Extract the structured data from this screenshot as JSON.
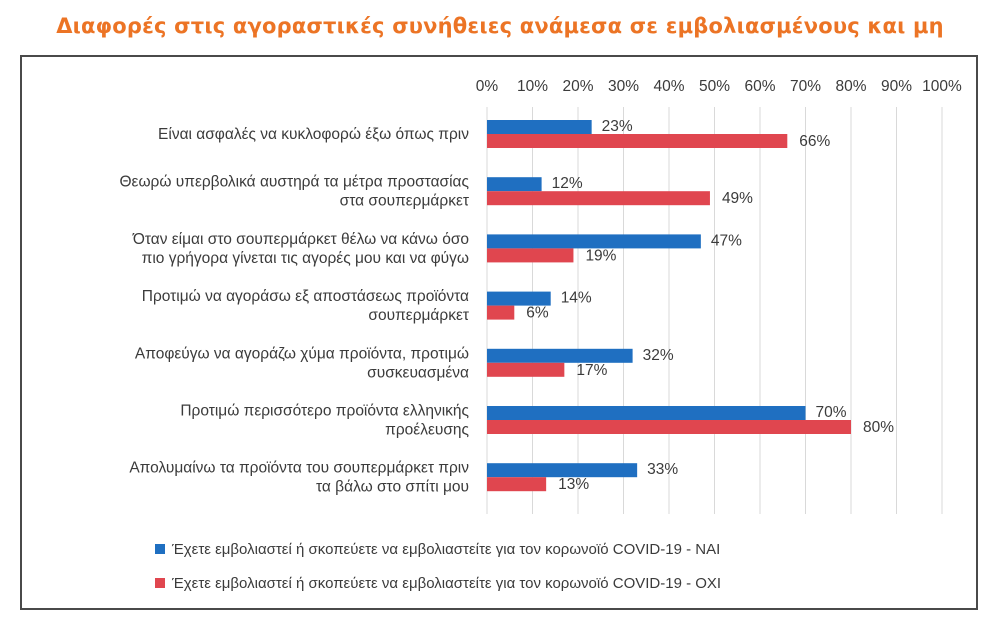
{
  "title": "Διαφορές στις αγοραστικές συνήθειες ανάμεσα σε εμβολιασμένους και μη",
  "chart_data": {
    "type": "bar",
    "orientation": "horizontal",
    "categories": [
      [
        "Είναι ασφαλές να κυκλοφορώ έξω όπως πριν"
      ],
      [
        "Θεωρώ υπερβολικά αυστηρά τα μέτρα προστασίας",
        "στα σουπερμάρκετ"
      ],
      [
        "Όταν είμαι στο σουπερμάρκετ θέλω να κάνω όσο",
        "πιο γρήγορα γίνεται τις αγορές μου και να φύγω"
      ],
      [
        "Προτιμώ να αγοράσω εξ αποστάσεως προϊόντα",
        "σουπερμάρκετ"
      ],
      [
        "Αποφεύγω να αγοράζω χύμα προϊόντα, προτιμώ",
        "συσκευασμένα"
      ],
      [
        "Προτιμώ περισσότερο προϊόντα ελληνικής",
        "προέλευσης"
      ],
      [
        "Απολυμαίνω τα προϊόντα του σουπερμάρκετ πριν",
        "τα βάλω στο σπίτι μου"
      ]
    ],
    "series": [
      {
        "name": "Έχετε εμβολιαστεί ή σκοπεύετε να εμβολιαστείτε για τον κορωνοϊό COVID-19 - ΝΑΙ",
        "color": "#1f6fc1",
        "values": [
          23,
          12,
          47,
          14,
          32,
          70,
          33
        ],
        "labels": [
          "23%",
          "12%",
          "47%",
          "14%",
          "32%",
          "70%",
          "33%"
        ]
      },
      {
        "name": "Έχετε εμβολιαστεί ή σκοπεύετε να εμβολιαστείτε για τον κορωνοϊό COVID-19 - ΟΧΙ",
        "color": "#e0464f",
        "values": [
          66,
          49,
          19,
          6,
          17,
          80,
          13
        ],
        "labels": [
          "66%",
          "49%",
          "19%",
          "6%",
          "17%",
          "80%",
          "13%"
        ]
      }
    ],
    "xlim": [
      0,
      100
    ],
    "x_ticks": [
      "0%",
      "10%",
      "20%",
      "30%",
      "40%",
      "50%",
      "60%",
      "70%",
      "80%",
      "90%",
      "100%"
    ],
    "axis_position": "top",
    "grid": true,
    "legend_position": "bottom"
  }
}
